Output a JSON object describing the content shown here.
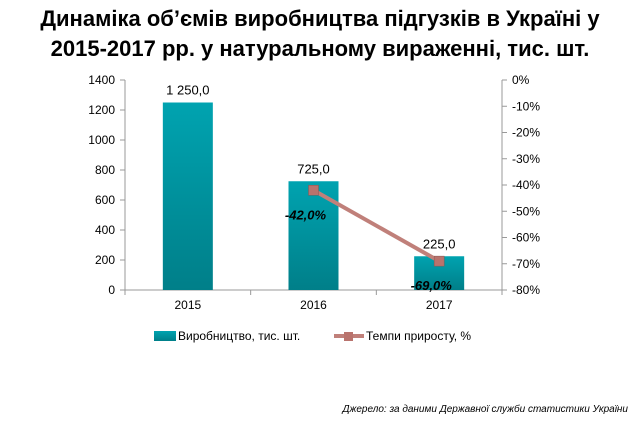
{
  "title_line1": "Динаміка об’ємів виробництва підгузків в Україні у",
  "title_line2": "2015-2017 рр. у натуральному вираженні, тис. шт.",
  "source": "Джерело: за даними Державної служби статистики України",
  "colors": {
    "bar": "#00A3B0",
    "bar_dark": "#007F89",
    "line": "#C0807A",
    "marker": "#B9736D"
  },
  "chart_data": {
    "type": "bar+line",
    "categories": [
      "2015",
      "2016",
      "2017"
    ],
    "series": [
      {
        "name": "Виробництво, тис. шт.",
        "type": "bar",
        "axis": "left",
        "values": [
          1250.0,
          725.0,
          225.0
        ],
        "labels": [
          "1 250,0",
          "725,0",
          "225,0"
        ]
      },
      {
        "name": "Темпи приросту, %",
        "type": "line",
        "axis": "right",
        "points": [
          {
            "category": "2016",
            "value": -42.0,
            "label": "-42,0%"
          },
          {
            "category": "2017",
            "value": -69.0,
            "label": "-69,0%"
          }
        ]
      }
    ],
    "y_left": {
      "min": 0,
      "max": 1400,
      "ticks": [
        0,
        200,
        400,
        600,
        800,
        1000,
        1200,
        1400
      ],
      "tick_labels": [
        "0",
        "200",
        "400",
        "600",
        "800",
        "1000",
        "1200",
        "1400"
      ]
    },
    "y_right": {
      "min": -80,
      "max": 0,
      "ticks": [
        0,
        -10,
        -20,
        -30,
        -40,
        -50,
        -60,
        -70,
        -80
      ],
      "tick_labels": [
        "0%",
        "-10%",
        "-20%",
        "-30%",
        "-40%",
        "-50%",
        "-60%",
        "-70%",
        "-80%"
      ]
    },
    "grid": false,
    "legend": "bottom"
  }
}
